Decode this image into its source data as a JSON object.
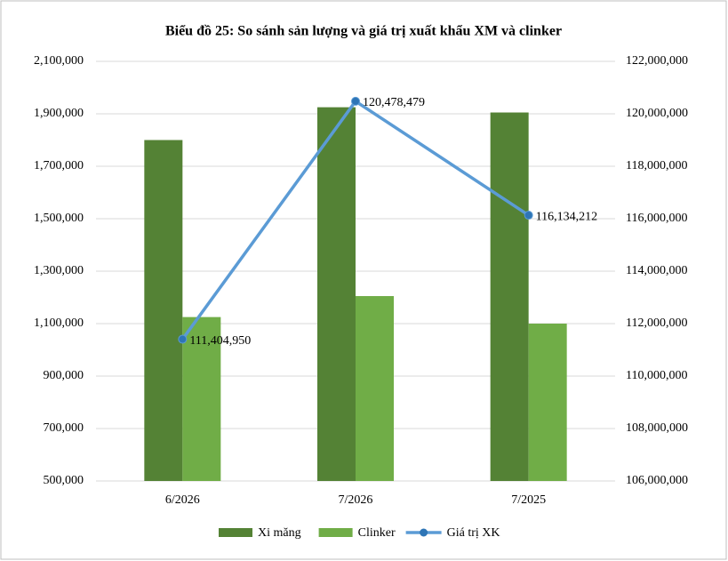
{
  "chart_data": {
    "type": "bar",
    "title": "Biểu đồ 25: So sánh sản lượng và giá trị xuất khẩu XM và clinker",
    "categories": [
      "6/2026",
      "7/2026",
      "7/2025"
    ],
    "series": [
      {
        "name": "Xi măng",
        "type": "bar",
        "color": "#548235",
        "values": [
          1800000,
          1925000,
          1905000
        ]
      },
      {
        "name": "Clinker",
        "type": "bar",
        "color": "#70ad47",
        "values": [
          1125000,
          1205000,
          1100000
        ]
      },
      {
        "name": "Giá trị XK",
        "type": "line",
        "axis": "y2",
        "color": "#5b9bd5",
        "marker_color": "#2e75b6",
        "values": [
          111404950,
          120478479,
          116134212
        ],
        "value_labels": [
          "111,404,950",
          "120,478,479",
          "116,134,212"
        ]
      }
    ],
    "ylim": [
      500000,
      2100000
    ],
    "yticks": [
      {
        "value": 500000,
        "label": "500,000"
      },
      {
        "value": 700000,
        "label": "700,000"
      },
      {
        "value": 900000,
        "label": "900,000"
      },
      {
        "value": 1100000,
        "label": "1,100,000"
      },
      {
        "value": 1300000,
        "label": "1,300,000"
      },
      {
        "value": 1500000,
        "label": "1,500,000"
      },
      {
        "value": 1700000,
        "label": "1,700,000"
      },
      {
        "value": 1900000,
        "label": "1,900,000"
      },
      {
        "value": 2100000,
        "label": "2,100,000"
      }
    ],
    "y2lim": [
      106000000,
      122000000
    ],
    "y2ticks": [
      {
        "value": 106000000,
        "label": "106,000,000"
      },
      {
        "value": 108000000,
        "label": "108,000,000"
      },
      {
        "value": 110000000,
        "label": "110,000,000"
      },
      {
        "value": 112000000,
        "label": "112,000,000"
      },
      {
        "value": 114000000,
        "label": "114,000,000"
      },
      {
        "value": 116000000,
        "label": "116,000,000"
      },
      {
        "value": 118000000,
        "label": "118,000,000"
      },
      {
        "value": 120000000,
        "label": "120,000,000"
      },
      {
        "value": 122000000,
        "label": "122,000,000"
      }
    ],
    "grid": true,
    "legend": "bottom"
  }
}
